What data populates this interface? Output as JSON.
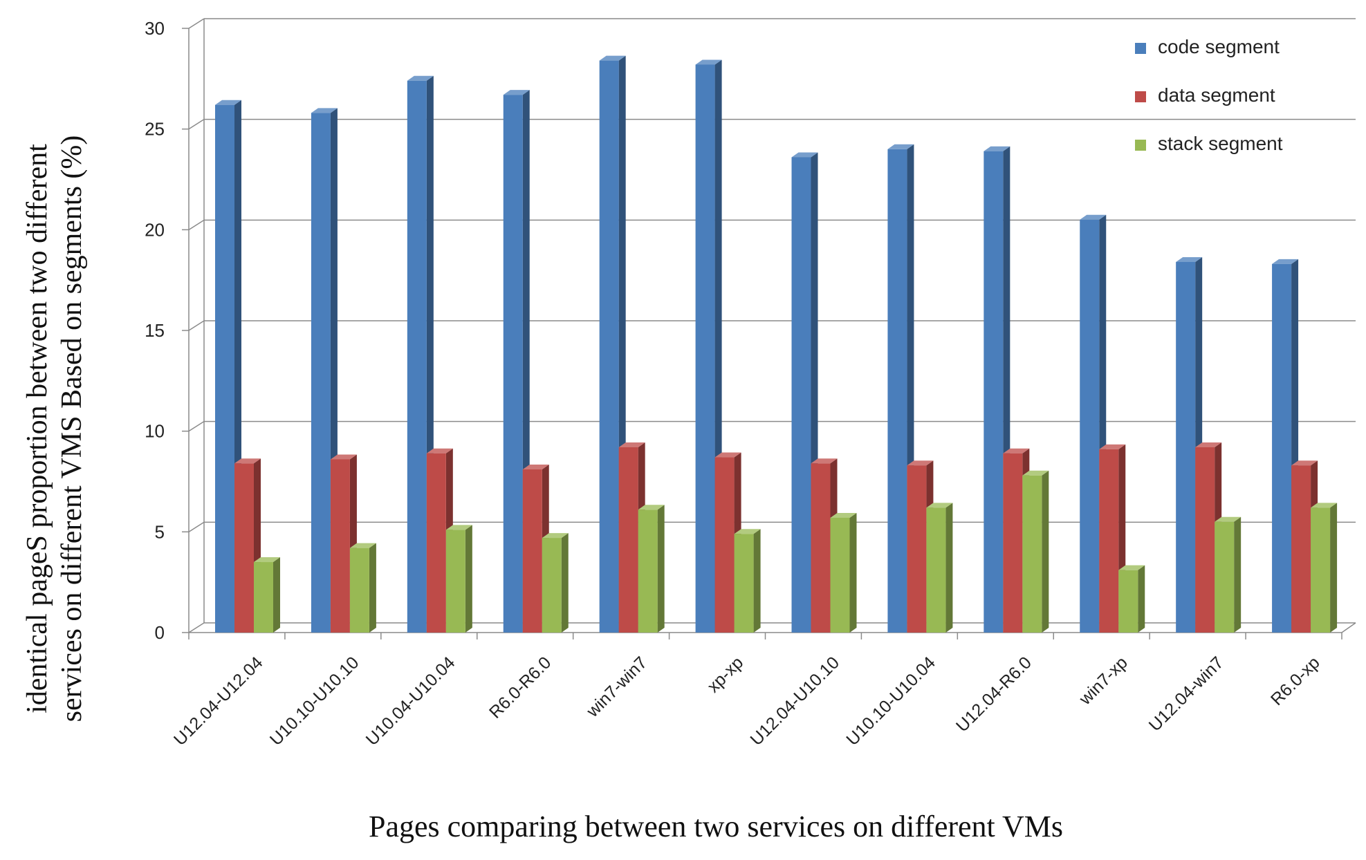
{
  "chart_data": {
    "type": "bar",
    "title": "",
    "xlabel": "Pages comparing between two services on different VMs",
    "ylabel_lines": [
      "identical pageS proportion between two different",
      "services on different VMS Based on segments (%)"
    ],
    "ylim": [
      0,
      30
    ],
    "yticks": [
      0,
      5,
      10,
      15,
      20,
      25,
      30
    ],
    "grid": true,
    "legend_position": "top-right",
    "categories": [
      "U12.04-U12.04",
      "U10.10-U10.10",
      "U10.04-U10.04",
      "R6.0-R6.0",
      "win7-win7",
      "xp-xp",
      "U12.04-U10.10",
      "U10.10-U10.04",
      "U12.04-R6.0",
      "win7-xp",
      "U12.04-win7",
      "R6.0-xp"
    ],
    "series": [
      {
        "name": "code segment",
        "color": "#4a7ebb",
        "values": [
          26.2,
          25.8,
          27.4,
          26.7,
          28.4,
          28.2,
          23.6,
          24.0,
          23.9,
          20.5,
          18.4,
          18.3
        ]
      },
      {
        "name": "data segment",
        "color": "#be4b48",
        "values": [
          8.4,
          8.6,
          8.9,
          8.1,
          9.2,
          8.7,
          8.4,
          8.3,
          8.9,
          9.1,
          9.2,
          8.3
        ]
      },
      {
        "name": "stack segment",
        "color": "#98b954",
        "values": [
          3.5,
          4.2,
          5.1,
          4.7,
          6.1,
          4.9,
          5.7,
          6.2,
          7.8,
          3.1,
          5.5,
          6.2
        ]
      }
    ]
  }
}
